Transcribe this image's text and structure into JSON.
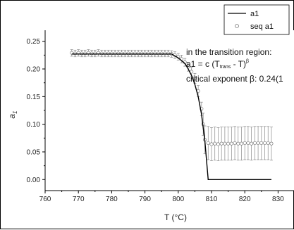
{
  "chart_data": {
    "type": "scatter",
    "xlabel": "T (°C)",
    "ylabel": "a",
    "ylabel_sub": "1",
    "xlim": [
      760,
      835
    ],
    "ylim": [
      -0.02,
      0.27
    ],
    "xticks": [
      760,
      770,
      780,
      790,
      800,
      810,
      820,
      830
    ],
    "yticks": [
      0.0,
      0.05,
      0.1,
      0.15,
      0.2,
      0.25
    ],
    "ytick_labels": [
      "0.00",
      "0.05",
      "0.10",
      "0.15",
      "0.20",
      "0.25"
    ],
    "legend": {
      "position": "top-right",
      "entries": [
        "a1",
        "seq a1"
      ]
    },
    "annotations": {
      "line1": "in the transition region:",
      "line2_prefix": "a1 = c (T",
      "line2_sub": "trans",
      "line2_mid": " - T)",
      "line2_sup": "β",
      "line3": "critical exponent β: 0.24(1"
    },
    "series": [
      {
        "name": "a1",
        "kind": "line",
        "x": [
          768,
          798,
          800,
          802,
          803,
          804,
          805,
          806,
          807,
          808,
          809,
          828
        ],
        "y": [
          0.227,
          0.227,
          0.22,
          0.21,
          0.2,
          0.188,
          0.172,
          0.15,
          0.118,
          0.07,
          0.0,
          0.0
        ]
      },
      {
        "name": "seq a1",
        "kind": "markers",
        "x": [
          768,
          769,
          770,
          771,
          772,
          773,
          774,
          775,
          776,
          777,
          778,
          779,
          780,
          781,
          782,
          783,
          784,
          785,
          786,
          787,
          788,
          789,
          790,
          791,
          792,
          793,
          794,
          795,
          796,
          797,
          798,
          799,
          800,
          801,
          802,
          803,
          804,
          805,
          806,
          807,
          807.5,
          808,
          809,
          810,
          811,
          812,
          813,
          814,
          815,
          816,
          817,
          818,
          819,
          820,
          821,
          822,
          823,
          824,
          825,
          826,
          827,
          828
        ],
        "y": [
          0.229,
          0.228,
          0.229,
          0.228,
          0.228,
          0.229,
          0.228,
          0.228,
          0.229,
          0.228,
          0.228,
          0.228,
          0.228,
          0.228,
          0.228,
          0.228,
          0.228,
          0.228,
          0.228,
          0.228,
          0.228,
          0.228,
          0.228,
          0.228,
          0.228,
          0.228,
          0.228,
          0.228,
          0.228,
          0.228,
          0.227,
          0.225,
          0.222,
          0.218,
          0.212,
          0.204,
          0.195,
          0.183,
          0.16,
          0.128,
          0.1,
          0.072,
          0.066,
          0.064,
          0.065,
          0.064,
          0.065,
          0.065,
          0.065,
          0.065,
          0.066,
          0.065,
          0.065,
          0.066,
          0.066,
          0.065,
          0.066,
          0.066,
          0.066,
          0.066,
          0.066,
          0.065
        ],
        "err": [
          0.006,
          0.006,
          0.006,
          0.006,
          0.006,
          0.006,
          0.006,
          0.006,
          0.006,
          0.006,
          0.006,
          0.006,
          0.006,
          0.006,
          0.006,
          0.006,
          0.006,
          0.006,
          0.006,
          0.006,
          0.006,
          0.006,
          0.006,
          0.006,
          0.006,
          0.006,
          0.006,
          0.006,
          0.006,
          0.006,
          0.006,
          0.006,
          0.006,
          0.007,
          0.007,
          0.008,
          0.008,
          0.009,
          0.01,
          0.012,
          0.02,
          0.025,
          0.03,
          0.03,
          0.03,
          0.03,
          0.03,
          0.03,
          0.03,
          0.03,
          0.03,
          0.03,
          0.03,
          0.03,
          0.03,
          0.03,
          0.03,
          0.03,
          0.03,
          0.03,
          0.03,
          0.03
        ]
      }
    ]
  }
}
